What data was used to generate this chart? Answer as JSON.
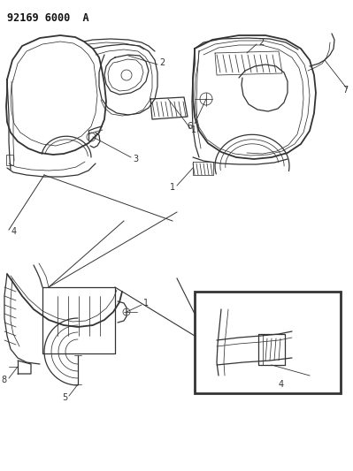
{
  "title": "92169 6000  A",
  "bg_color": "#ffffff",
  "line_color": "#333333",
  "label_color": "#111111",
  "title_fontsize": 8.5,
  "label_fontsize": 7.0,
  "lw_main": 0.9,
  "lw_thin": 0.55,
  "lw_thick": 1.3
}
